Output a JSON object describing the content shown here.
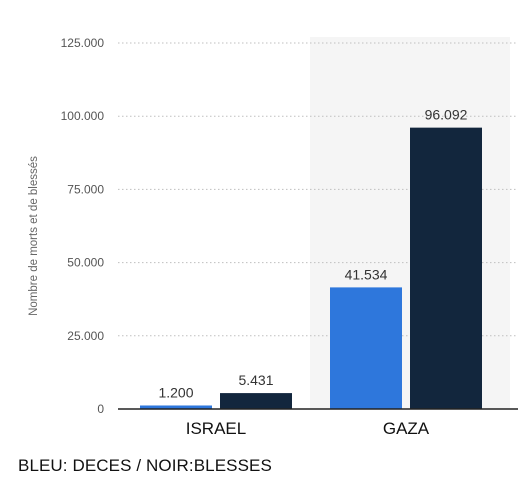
{
  "chart_data": {
    "type": "bar",
    "categories": [
      "ISRAEL",
      "GAZA"
    ],
    "series": [
      {
        "values": [
          1200,
          41534
        ]
      },
      {
        "values": [
          5431,
          96092
        ]
      }
    ],
    "value_labels": [
      [
        "1.200",
        "41.534"
      ],
      [
        "5.431",
        "96.092"
      ]
    ],
    "ylabel": "Nombre de morts et de blessés",
    "ylim": [
      0,
      125000
    ],
    "yticks": [
      0,
      25000,
      50000,
      75000,
      100000,
      125000
    ],
    "ytick_labels": [
      "0",
      "25.000",
      "50.000",
      "75.000",
      "100.000",
      "125.000"
    ],
    "grid": true,
    "highlighted_category": "GAZA",
    "colors": {
      "series_1": "#2e77dc",
      "series_2": "#12263d",
      "grid": "#bfbfbf",
      "axis": "#222222",
      "highlight_band": "#f5f5f5",
      "tick_text": "#555555",
      "category_text": "#111111",
      "value_text": "#333333"
    }
  },
  "footer": {
    "note": "BLEU: DECES / NOIR:BLESSES"
  }
}
